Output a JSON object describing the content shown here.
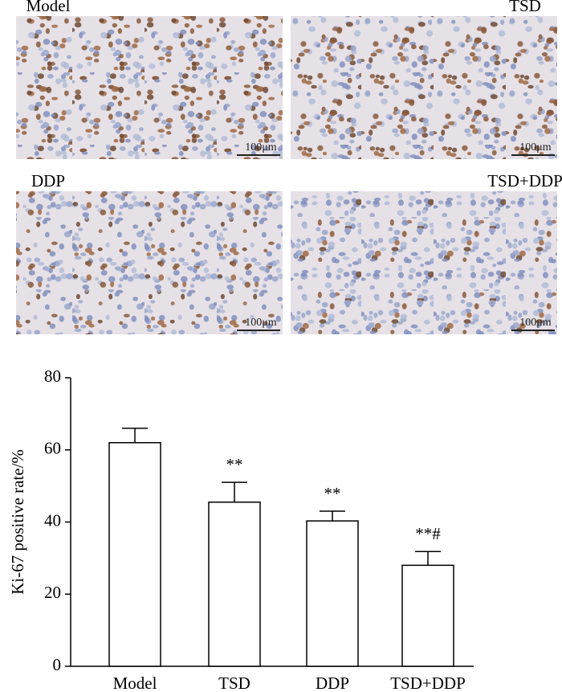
{
  "panels": [
    {
      "label": "Model",
      "scale_bar": "100μm"
    },
    {
      "label": "TSD",
      "scale_bar": "100μm"
    },
    {
      "label": "DDP",
      "scale_bar": "100μm"
    },
    {
      "label": "TSD+DDP",
      "scale_bar": "100μm"
    }
  ],
  "chart_data": {
    "type": "bar",
    "y_label": "Ki-67 positive rate/%",
    "categories": [
      "Model",
      "TSD",
      "DDP",
      "TSD+DDP"
    ],
    "values": [
      62,
      45.5,
      40.3,
      28
    ],
    "errors": [
      4,
      5.5,
      2.7,
      3.8
    ],
    "significance": [
      null,
      "**",
      "**",
      "**#"
    ],
    "color": "#ffffff",
    "ylim": [
      0,
      80
    ],
    "yticks": [
      0,
      20,
      40,
      60,
      80
    ],
    "grid": false
  }
}
